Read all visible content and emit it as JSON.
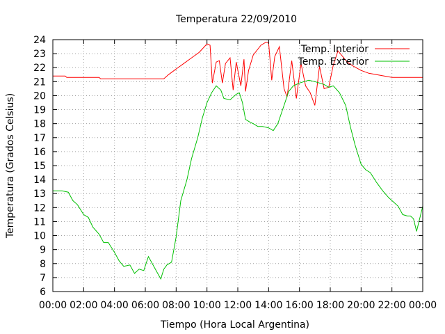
{
  "chart_data": {
    "type": "line",
    "title": "Temperatura 22/09/2010",
    "xlabel": "Tiempo (Hora Local Argentina)",
    "ylabel": "Temperatura (Grados Celsius)",
    "xlim": [
      0,
      24
    ],
    "ylim": [
      6,
      24
    ],
    "grid": true,
    "legend_position": "top-right",
    "x_ticks": [
      "00:00",
      "02:00",
      "04:00",
      "06:00",
      "08:00",
      "10:00",
      "12:00",
      "14:00",
      "16:00",
      "18:00",
      "20:00",
      "22:00",
      "00:00"
    ],
    "y_ticks": [
      "6",
      "7",
      "8",
      "9",
      "10",
      "11",
      "12",
      "13",
      "14",
      "15",
      "16",
      "17",
      "18",
      "19",
      "20",
      "21",
      "22",
      "23",
      "24"
    ],
    "series": [
      {
        "name": "Temp. Interior",
        "color": "#ff0000",
        "x": [
          0,
          0.8,
          0.9,
          3.0,
          3.1,
          7.2,
          7.5,
          8.0,
          8.5,
          9.0,
          9.5,
          10.0,
          10.2,
          10.35,
          10.6,
          10.8,
          11.0,
          11.2,
          11.5,
          11.7,
          11.9,
          12.2,
          12.4,
          12.5,
          12.7,
          13.0,
          13.5,
          13.8,
          14.0,
          14.2,
          14.4,
          14.7,
          15.0,
          15.2,
          15.5,
          15.8,
          16.1,
          16.4,
          16.7,
          17.0,
          17.3,
          17.6,
          17.9,
          18.2,
          18.5,
          18.8,
          19.1,
          19.5,
          20.0,
          20.5,
          21.0,
          21.5,
          22.0,
          23.0,
          24.0
        ],
        "values": [
          21.4,
          21.4,
          21.3,
          21.3,
          21.2,
          21.2,
          21.5,
          21.9,
          22.3,
          22.7,
          23.1,
          23.7,
          23.6,
          20.9,
          22.4,
          22.5,
          20.9,
          22.3,
          22.7,
          20.4,
          22.4,
          20.7,
          22.6,
          20.3,
          21.8,
          22.9,
          23.6,
          23.8,
          23.8,
          21.1,
          22.8,
          23.5,
          20.5,
          19.9,
          22.5,
          19.8,
          22.3,
          20.7,
          20.2,
          19.3,
          22.1,
          20.5,
          20.6,
          22.2,
          23.2,
          22.8,
          22.4,
          22.1,
          21.8,
          21.6,
          21.5,
          21.4,
          21.3,
          21.3,
          21.3
        ]
      },
      {
        "name": "Temp. Exterior",
        "color": "#00c000",
        "x": [
          0,
          0.3,
          0.6,
          1.0,
          1.3,
          1.6,
          2.0,
          2.3,
          2.6,
          3.0,
          3.3,
          3.6,
          4.0,
          4.3,
          4.6,
          5.0,
          5.3,
          5.6,
          5.9,
          6.2,
          6.4,
          6.7,
          7.0,
          7.2,
          7.4,
          7.7,
          8.0,
          8.3,
          8.7,
          9.0,
          9.4,
          9.7,
          10.0,
          10.3,
          10.6,
          10.9,
          11.1,
          11.5,
          11.9,
          12.1,
          12.3,
          12.5,
          12.8,
          13.0,
          13.3,
          13.6,
          14.0,
          14.3,
          14.6,
          15.0,
          15.3,
          15.6,
          16.0,
          16.3,
          16.6,
          17.0,
          17.3,
          17.6,
          17.9,
          18.2,
          18.6,
          19.0,
          19.3,
          19.6,
          20.0,
          20.3,
          20.6,
          21.0,
          21.4,
          21.8,
          22.1,
          22.4,
          22.7,
          23.0,
          23.2,
          23.4,
          23.6,
          24.0
        ],
        "values": [
          13.2,
          13.2,
          13.2,
          13.1,
          12.5,
          12.2,
          11.5,
          11.3,
          10.6,
          10.1,
          9.5,
          9.5,
          8.8,
          8.2,
          7.8,
          7.9,
          7.3,
          7.6,
          7.5,
          8.5,
          8.1,
          7.5,
          6.9,
          7.6,
          7.9,
          8.1,
          9.9,
          12.5,
          14.0,
          15.5,
          17.0,
          18.4,
          19.5,
          20.2,
          20.7,
          20.4,
          19.8,
          19.7,
          20.1,
          20.2,
          19.5,
          18.3,
          18.1,
          18.0,
          17.8,
          17.8,
          17.7,
          17.5,
          18.0,
          19.3,
          20.3,
          20.7,
          20.9,
          21.0,
          21.1,
          21.0,
          20.9,
          20.8,
          20.6,
          20.7,
          20.2,
          19.3,
          17.8,
          16.5,
          15.1,
          14.7,
          14.5,
          13.8,
          13.2,
          12.7,
          12.4,
          12.1,
          11.5,
          11.4,
          11.4,
          11.2,
          10.3,
          12.1
        ]
      }
    ]
  }
}
